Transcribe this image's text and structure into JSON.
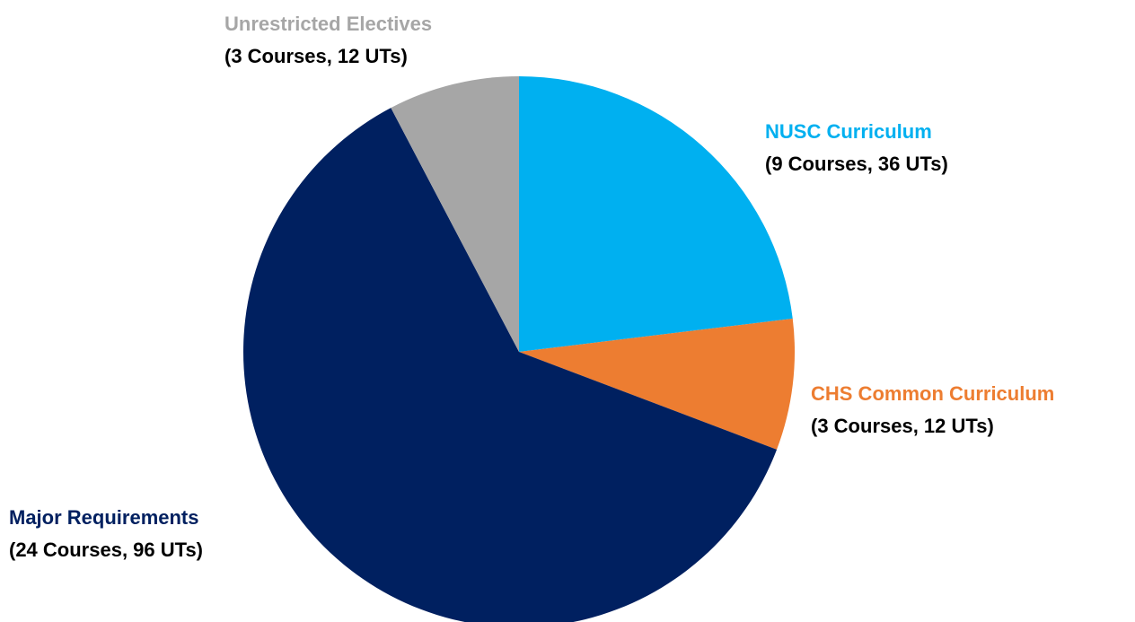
{
  "chart_data": {
    "type": "pie",
    "categories": [
      "NUSC Curriculum",
      "CHS Common Curriculum",
      "Major Requirements",
      "Unrestricted Electives"
    ],
    "values": [
      36,
      12,
      96,
      12
    ],
    "value_labels": [
      "(9 Courses, 36 UTs)",
      "(3 Courses, 12 UTs)",
      "(24 Courses, 96 UTs)",
      "(3 Courses, 12 UTs)"
    ],
    "colors": [
      "#00b0f0",
      "#ed7d31",
      "#002060",
      "#a6a6a6"
    ]
  }
}
